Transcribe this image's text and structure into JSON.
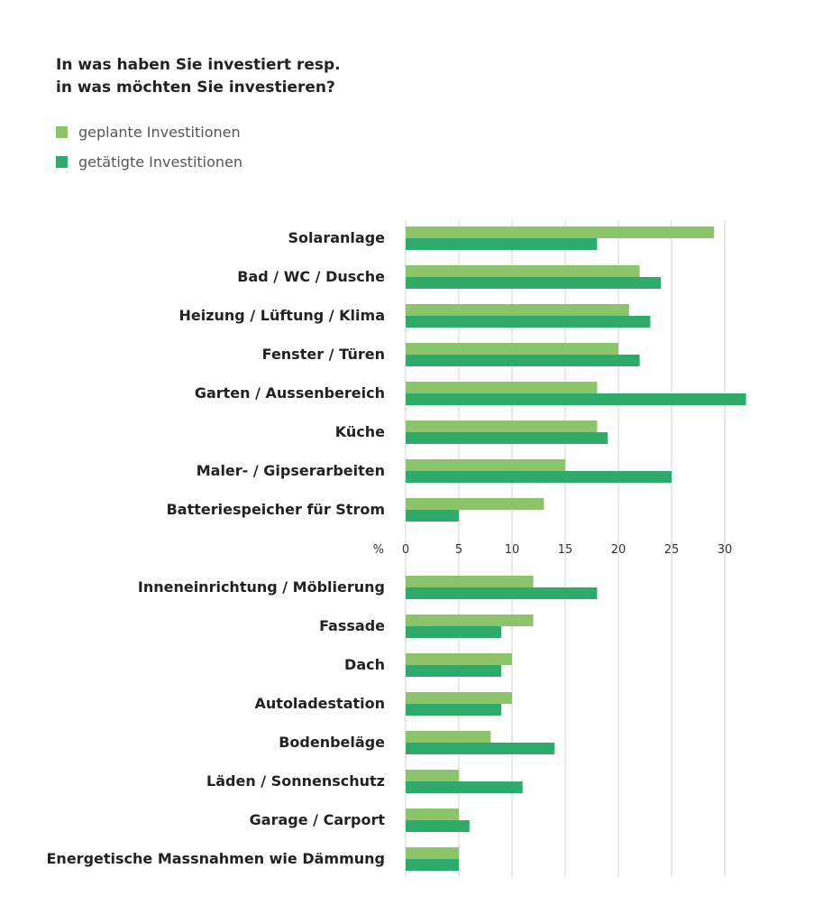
{
  "title_line1": "In was haben Sie investiert resp.",
  "title_line2": "in was möchten Sie investieren?",
  "legend": [
    {
      "label": "geplante Investitionen",
      "color": "#8cc46b"
    },
    {
      "label": "getätigte Investitionen",
      "color": "#2eab6a"
    }
  ],
  "chart_data": {
    "type": "bar",
    "orientation": "horizontal",
    "categories": [
      "Solaranlage",
      "Bad / WC / Dusche",
      "Heizung / Lüftung / Klima",
      "Fenster / Türen",
      "Garten / Aussenbereich",
      "Küche",
      "Maler- / Gipserarbeiten",
      "Batteriespeicher für Strom",
      "Inneneinrichtung / Möblierung",
      "Fassade",
      "Dach",
      "Autoladestation",
      "Bodenbeläge",
      "Läden / Sonnenschutz",
      "Garage / Carport",
      "Energetische Massnahmen wie Dämmung"
    ],
    "series": [
      {
        "name": "geplante Investitionen",
        "color": "#8cc46b",
        "values": [
          29,
          22,
          21,
          20,
          18,
          18,
          15,
          13,
          12,
          12,
          10,
          10,
          8,
          5,
          5,
          5
        ]
      },
      {
        "name": "getätigte Investitionen",
        "color": "#2eab6a",
        "values": [
          18,
          24,
          23,
          22,
          32,
          19,
          25,
          5,
          18,
          9,
          9,
          9,
          14,
          11,
          6,
          5
        ]
      }
    ],
    "axis_unit_label": "%",
    "xticks": [
      0,
      5,
      10,
      15,
      20,
      25,
      30
    ],
    "xlim": [
      0,
      33
    ],
    "grid": true,
    "legend_position": "top-left"
  }
}
